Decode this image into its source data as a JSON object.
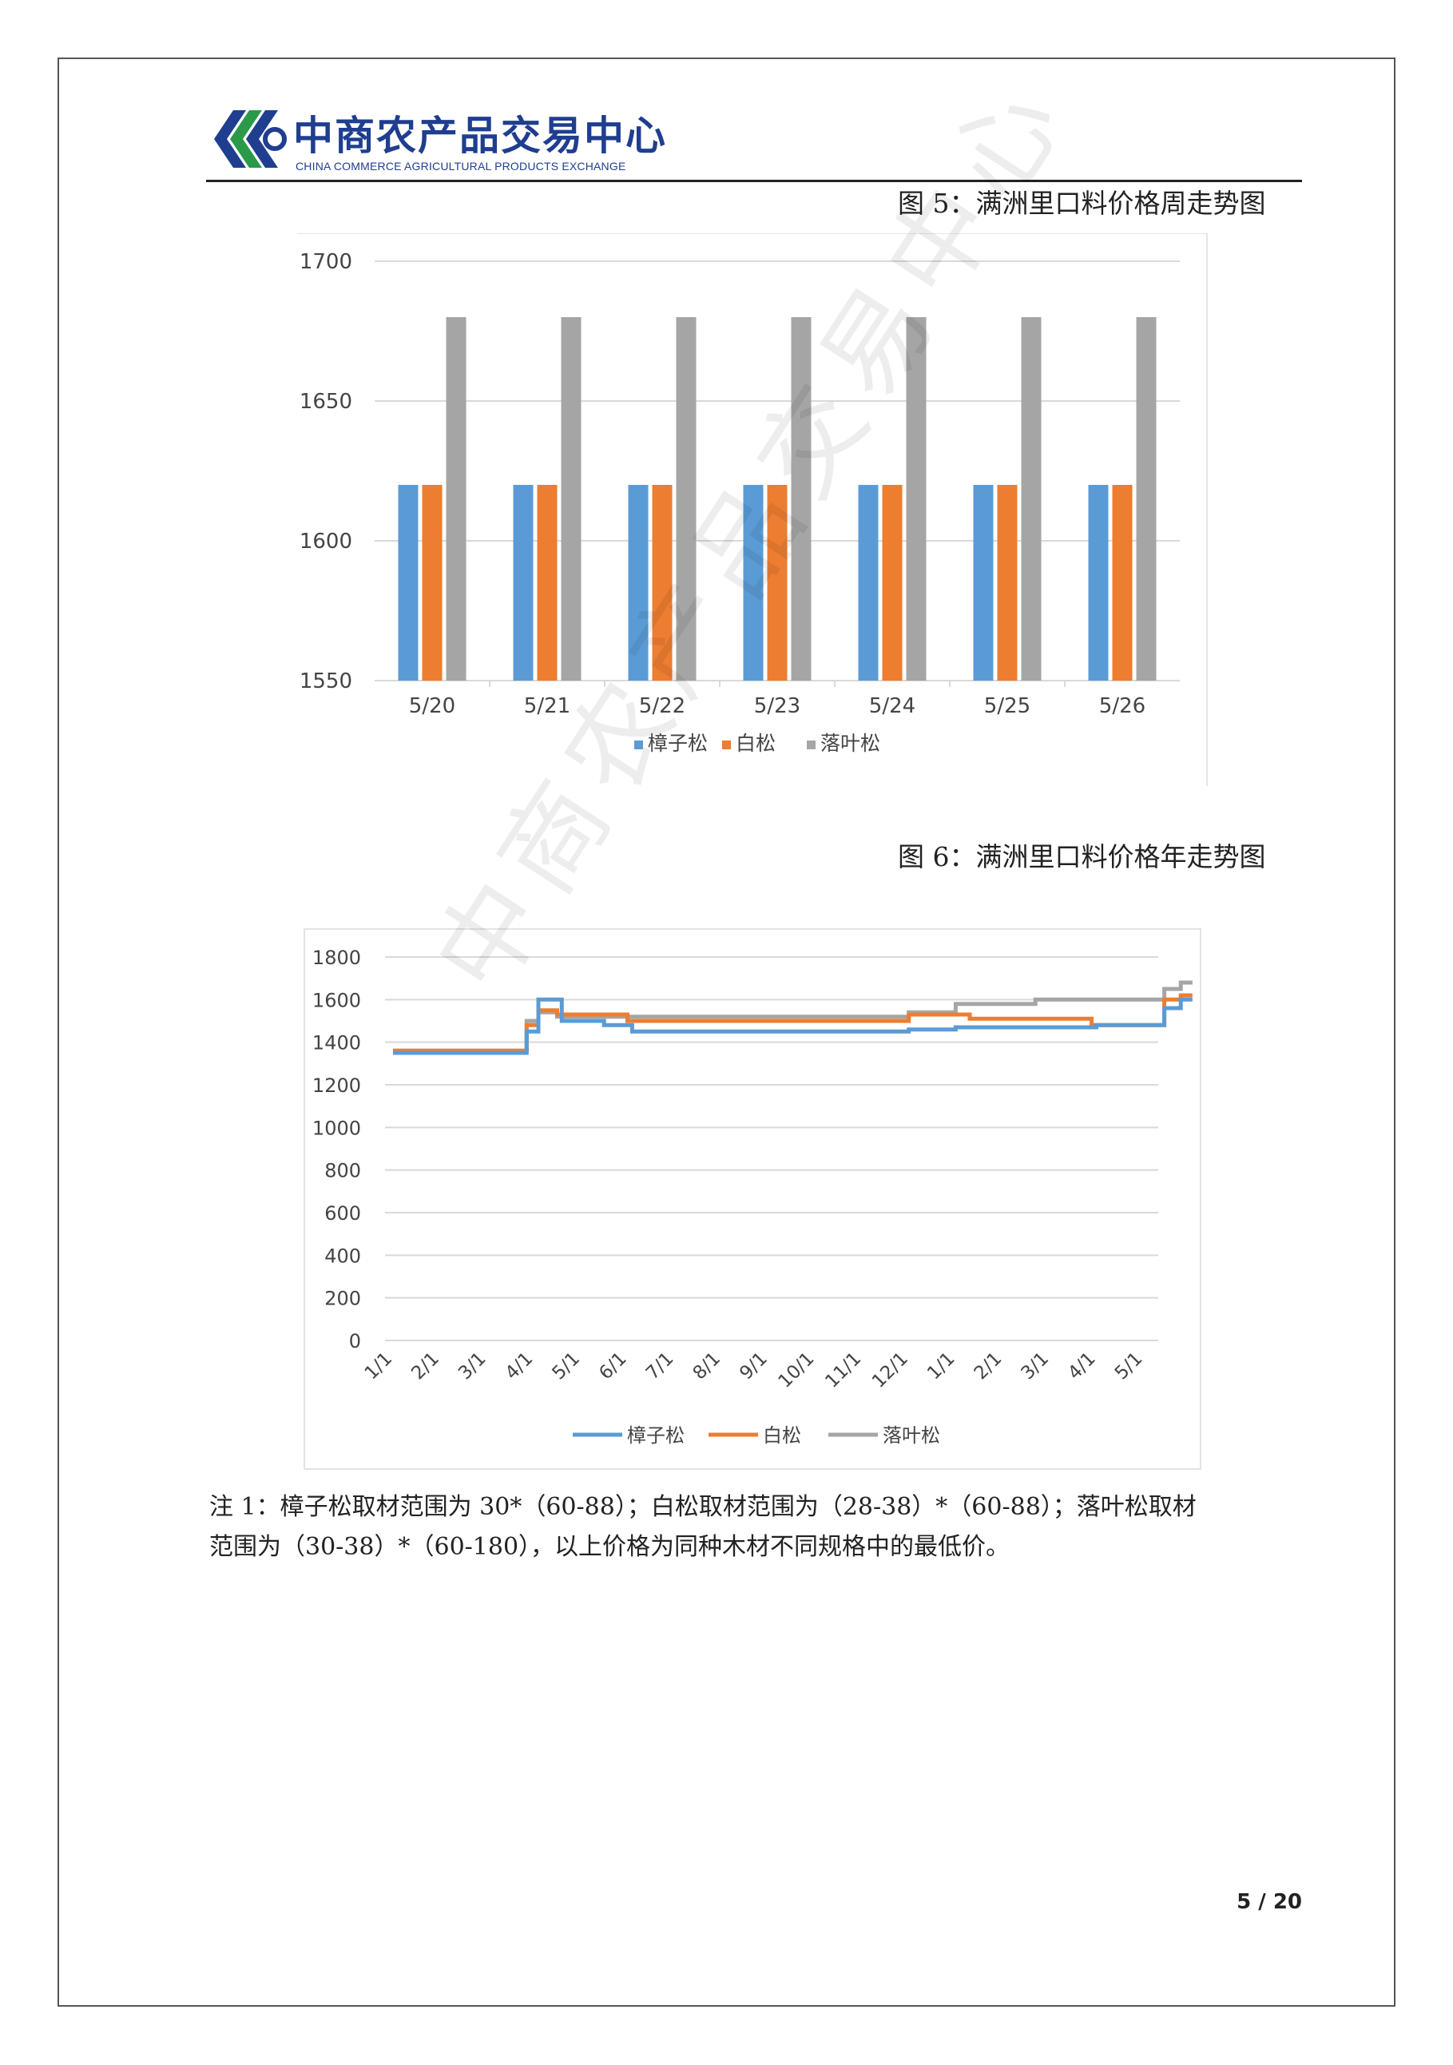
{
  "header": {
    "logo_cn": "中商农产品交易中心",
    "logo_en": "CHINA COMMERCE AGRICULTURAL PRODUCTS EXCHANGE"
  },
  "figures": {
    "fig5_title": "图 5：满洲里口料价格周走势图",
    "fig6_title": "图 6：满洲里口料价格年走势图"
  },
  "chart_data": [
    {
      "type": "bar",
      "categories": [
        "5/20",
        "5/21",
        "5/22",
        "5/23",
        "5/24",
        "5/25",
        "5/26"
      ],
      "series": [
        {
          "name": "樟子松",
          "color": "#5b9bd5",
          "values": [
            1620,
            1620,
            1620,
            1620,
            1620,
            1620,
            1620
          ]
        },
        {
          "name": "白松",
          "color": "#ed7d31",
          "values": [
            1620,
            1620,
            1620,
            1620,
            1620,
            1620,
            1620
          ]
        },
        {
          "name": "落叶松",
          "color": "#a5a5a5",
          "values": [
            1680,
            1680,
            1680,
            1680,
            1680,
            1680,
            1680
          ]
        }
      ],
      "ylim": [
        1550,
        1700
      ],
      "yticks": [
        "1550",
        "1600",
        "1650",
        "1700"
      ],
      "grid": true,
      "legend": "bottom"
    },
    {
      "type": "line",
      "x_ticks": [
        "1/1",
        "2/1",
        "3/1",
        "4/1",
        "5/1",
        "6/1",
        "7/1",
        "8/1",
        "9/1",
        "10/1",
        "11/1",
        "12/1",
        "1/1",
        "2/1",
        "3/1",
        "4/1",
        "5/1"
      ],
      "series": [
        {
          "name": "樟子松",
          "color": "#5b9bd5",
          "points": [
            [
              0,
              1350
            ],
            [
              2.85,
              1350
            ],
            [
              2.85,
              1450
            ],
            [
              3.1,
              1450
            ],
            [
              3.1,
              1600
            ],
            [
              3.6,
              1600
            ],
            [
              3.6,
              1500
            ],
            [
              4.5,
              1500
            ],
            [
              4.5,
              1480
            ],
            [
              5.1,
              1480
            ],
            [
              5.1,
              1450
            ],
            [
              11.0,
              1450
            ],
            [
              11.0,
              1460
            ],
            [
              12.0,
              1460
            ],
            [
              12.0,
              1470
            ],
            [
              15.0,
              1470
            ],
            [
              15.0,
              1480
            ],
            [
              16.45,
              1480
            ],
            [
              16.45,
              1560
            ],
            [
              16.8,
              1560
            ],
            [
              16.8,
              1600
            ],
            [
              17.05,
              1600
            ]
          ]
        },
        {
          "name": "白松",
          "color": "#ed7d31",
          "points": [
            [
              0,
              1360
            ],
            [
              2.85,
              1360
            ],
            [
              2.85,
              1480
            ],
            [
              3.1,
              1480
            ],
            [
              3.1,
              1550
            ],
            [
              3.5,
              1550
            ],
            [
              3.5,
              1530
            ],
            [
              5.0,
              1530
            ],
            [
              5.0,
              1500
            ],
            [
              11.0,
              1500
            ],
            [
              11.0,
              1530
            ],
            [
              12.3,
              1530
            ],
            [
              12.3,
              1510
            ],
            [
              14.9,
              1510
            ],
            [
              14.9,
              1480
            ],
            [
              16.45,
              1480
            ],
            [
              16.45,
              1600
            ],
            [
              16.8,
              1600
            ],
            [
              16.8,
              1620
            ],
            [
              17.05,
              1620
            ]
          ]
        },
        {
          "name": "落叶松",
          "color": "#a5a5a5",
          "points": [
            [
              0,
              1360
            ],
            [
              2.85,
              1360
            ],
            [
              2.85,
              1500
            ],
            [
              3.1,
              1500
            ],
            [
              3.1,
              1540
            ],
            [
              3.5,
              1540
            ],
            [
              3.5,
              1520
            ],
            [
              11.0,
              1520
            ],
            [
              11.0,
              1540
            ],
            [
              12.0,
              1540
            ],
            [
              12.0,
              1580
            ],
            [
              13.7,
              1580
            ],
            [
              13.7,
              1600
            ],
            [
              16.45,
              1600
            ],
            [
              16.45,
              1650
            ],
            [
              16.8,
              1650
            ],
            [
              16.8,
              1680
            ],
            [
              17.05,
              1680
            ]
          ]
        }
      ],
      "ylim": [
        0,
        1800
      ],
      "yticks": [
        "0",
        "200",
        "400",
        "600",
        "800",
        "1000",
        "1200",
        "1400",
        "1600",
        "1800"
      ],
      "grid": true,
      "legend": "bottom"
    }
  ],
  "note": {
    "line1": "注 1：樟子松取材范围为 30*（60-88）；白松取材范围为（28-38）*（60-88）；落叶松取材",
    "line2": "范围为（30-38）*（60-180），以上价格为同种木材不同规格中的最低价。"
  },
  "page_number": "5 / 20",
  "watermark": "中商农产品交易中心"
}
